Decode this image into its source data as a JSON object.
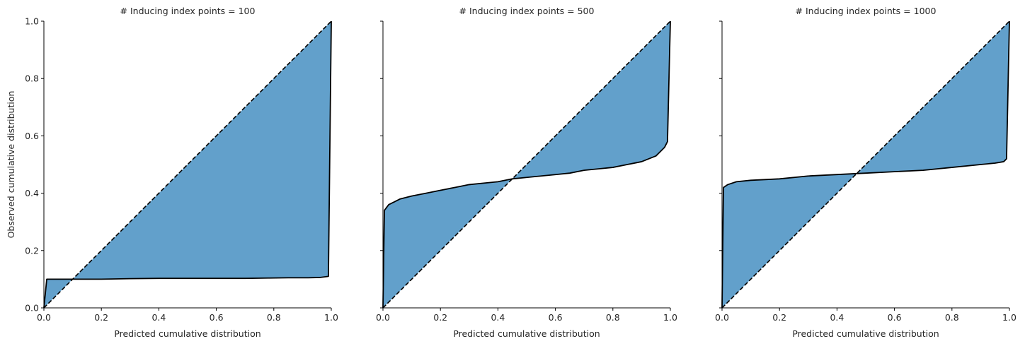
{
  "chart_data": [
    {
      "type": "area",
      "title": "# Inducing index points = 100",
      "xlabel": "Predicted cumulative distribution",
      "ylabel": "Observed cumulative distribution",
      "xlim": [
        0,
        1
      ],
      "ylim": [
        0,
        1
      ],
      "xticks": [
        "0.0",
        "0.2",
        "0.4",
        "0.6",
        "0.8",
        "1.0"
      ],
      "yticks": [
        "0.0",
        "0.2",
        "0.4",
        "0.6",
        "0.8",
        "1.0"
      ],
      "grid": false,
      "reference_line": {
        "x": [
          0,
          1
        ],
        "y": [
          0,
          1
        ],
        "style": "dashed"
      },
      "x": [
        0,
        0.01,
        0.05,
        0.1,
        0.2,
        0.3,
        0.4,
        0.5,
        0.6,
        0.7,
        0.78,
        0.85,
        0.92,
        0.96,
        0.99,
        1.0
      ],
      "y": [
        0,
        0.1,
        0.1,
        0.1,
        0.1,
        0.102,
        0.103,
        0.103,
        0.103,
        0.103,
        0.104,
        0.105,
        0.105,
        0.106,
        0.11,
        1.0
      ]
    },
    {
      "type": "area",
      "title": "# Inducing index points = 500",
      "xlabel": "Predicted cumulative distribution",
      "ylabel": "",
      "xlim": [
        0,
        1
      ],
      "ylim": [
        0,
        1
      ],
      "xticks": [
        "0.0",
        "0.2",
        "0.4",
        "0.6",
        "0.8",
        "1.0"
      ],
      "yticks": [
        "",
        "",
        "",
        "",
        "",
        ""
      ],
      "grid": false,
      "reference_line": {
        "x": [
          0,
          1
        ],
        "y": [
          0,
          1
        ],
        "style": "dashed"
      },
      "x": [
        0,
        0.005,
        0.02,
        0.04,
        0.06,
        0.1,
        0.15,
        0.2,
        0.25,
        0.3,
        0.35,
        0.4,
        0.45,
        0.5,
        0.55,
        0.6,
        0.65,
        0.7,
        0.75,
        0.8,
        0.85,
        0.9,
        0.95,
        0.98,
        0.99,
        1.0
      ],
      "y": [
        0,
        0.34,
        0.36,
        0.37,
        0.38,
        0.39,
        0.4,
        0.41,
        0.42,
        0.43,
        0.435,
        0.44,
        0.45,
        0.455,
        0.46,
        0.465,
        0.47,
        0.48,
        0.485,
        0.49,
        0.5,
        0.51,
        0.53,
        0.56,
        0.58,
        1.0
      ]
    },
    {
      "type": "area",
      "title": "# Inducing index points = 1000",
      "xlabel": "Predicted cumulative distribution",
      "ylabel": "",
      "xlim": [
        0,
        1
      ],
      "ylim": [
        0,
        1
      ],
      "xticks": [
        "0.0",
        "0.2",
        "0.4",
        "0.6",
        "0.8",
        "1.0"
      ],
      "yticks": [
        "",
        "",
        "",
        "",
        "",
        ""
      ],
      "grid": false,
      "reference_line": {
        "x": [
          0,
          1
        ],
        "y": [
          0,
          1
        ],
        "style": "dashed"
      },
      "x": [
        0,
        0.005,
        0.02,
        0.05,
        0.1,
        0.2,
        0.3,
        0.4,
        0.5,
        0.6,
        0.7,
        0.8,
        0.9,
        0.95,
        0.98,
        0.99,
        1.0
      ],
      "y": [
        0,
        0.42,
        0.43,
        0.44,
        0.445,
        0.45,
        0.46,
        0.465,
        0.47,
        0.475,
        0.48,
        0.49,
        0.5,
        0.505,
        0.51,
        0.52,
        1.0
      ]
    }
  ],
  "colors": {
    "fill": "#62a0cb",
    "line": "#000000",
    "axis": "#000000",
    "text": "#262626"
  }
}
